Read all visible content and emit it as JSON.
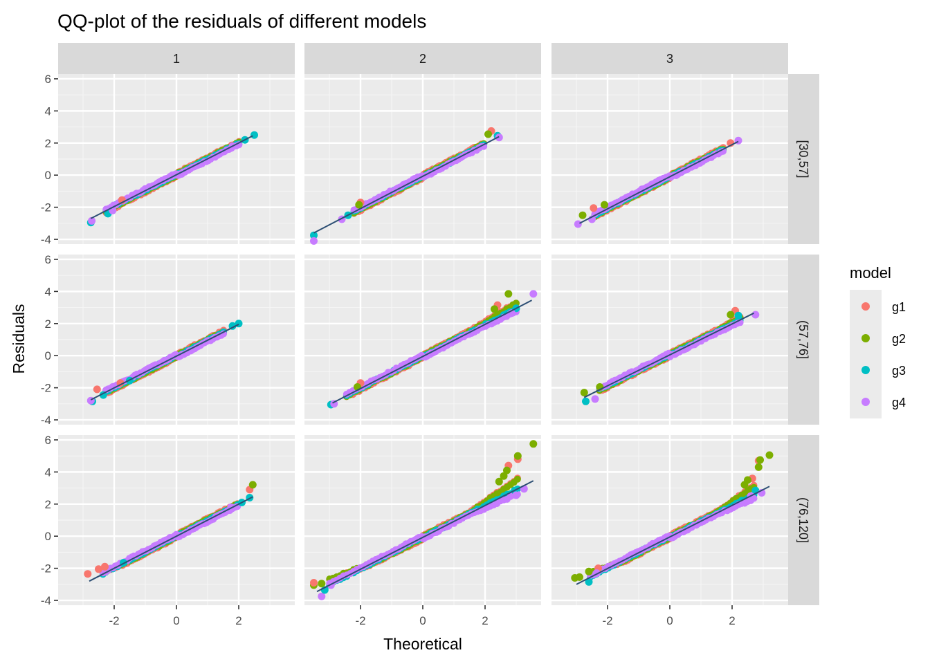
{
  "chart_data": {
    "type": "scatter",
    "subtype": "qq-plot facet grid",
    "title": "QQ-plot of the residuals of different models",
    "xlabel": "Theoretical",
    "ylabel": "Residuals",
    "xlim": [
      -3.8,
      3.8
    ],
    "ylim": [
      -4.3,
      6.3
    ],
    "x_ticks": [
      -2,
      0,
      2
    ],
    "x_tick_labels": [
      "-2",
      "0",
      "2"
    ],
    "y_ticks": [
      -4,
      -2,
      0,
      2,
      4,
      6
    ],
    "y_tick_labels": [
      "-4",
      "-2",
      "0",
      "2",
      "4",
      "6"
    ],
    "grid": true,
    "facet_columns": [
      "1",
      "2",
      "3"
    ],
    "facet_rows": [
      "[30,57]",
      "(57,76]",
      "(76,120]"
    ],
    "legend": {
      "title": "model",
      "position": "right",
      "entries": [
        {
          "name": "g1",
          "color": "#F8766D"
        },
        {
          "name": "g2",
          "color": "#7CAE00"
        },
        {
          "name": "g3",
          "color": "#00BFC4"
        },
        {
          "name": "g4",
          "color": "#C77CFF"
        }
      ]
    },
    "reference_line_color": "#2C4E73",
    "panels": [
      {
        "row": 0,
        "col": 0,
        "line": {
          "x": [
            -2.75,
            2.45
          ],
          "y": [
            -2.7,
            2.45
          ]
        },
        "x_range": [
          -2.75,
          2.5
        ],
        "curve": [
          0.0,
          0.0,
          0.0
        ],
        "outliers": [
          {
            "series": "g3",
            "x": -2.75,
            "y": -2.95
          },
          {
            "series": "g4",
            "x": -2.72,
            "y": -2.85
          },
          {
            "series": "g3",
            "x": -2.2,
            "y": -2.4
          },
          {
            "series": "g4",
            "x": -2.05,
            "y": -2.2
          },
          {
            "series": "g1",
            "x": -1.75,
            "y": -1.55
          },
          {
            "series": "g3",
            "x": 2.5,
            "y": 2.5
          },
          {
            "series": "g3",
            "x": 2.2,
            "y": 2.2
          },
          {
            "series": "g4",
            "x": 1.8,
            "y": 1.8
          }
        ]
      },
      {
        "row": 0,
        "col": 1,
        "line": {
          "x": [
            -3.5,
            2.45
          ],
          "y": [
            -3.6,
            2.4
          ]
        },
        "x_range": [
          -2.7,
          2.45
        ],
        "curve": [
          0.0,
          0.0,
          0.0
        ],
        "outliers": [
          {
            "series": "g3",
            "x": -3.5,
            "y": -3.75
          },
          {
            "series": "g4",
            "x": -3.5,
            "y": -4.1
          },
          {
            "series": "g4",
            "x": -2.6,
            "y": -2.75
          },
          {
            "series": "g3",
            "x": -2.4,
            "y": -2.5
          },
          {
            "series": "g1",
            "x": -2.0,
            "y": -1.7
          },
          {
            "series": "g2",
            "x": -2.05,
            "y": -1.85
          },
          {
            "series": "g1",
            "x": 2.2,
            "y": 2.75
          },
          {
            "series": "g2",
            "x": 2.1,
            "y": 2.55
          },
          {
            "series": "g3",
            "x": 2.4,
            "y": 2.45
          },
          {
            "series": "g4",
            "x": 2.45,
            "y": 2.35
          }
        ]
      },
      {
        "row": 0,
        "col": 2,
        "line": {
          "x": [
            -2.9,
            2.2
          ],
          "y": [
            -3.0,
            2.1
          ]
        },
        "x_range": [
          -2.9,
          2.2
        ],
        "curve": [
          0.0,
          0.0,
          0.0
        ],
        "outliers": [
          {
            "series": "g4",
            "x": -2.95,
            "y": -3.05
          },
          {
            "series": "g2",
            "x": -2.8,
            "y": -2.5
          },
          {
            "series": "g1",
            "x": -2.45,
            "y": -2.05
          },
          {
            "series": "g4",
            "x": -2.5,
            "y": -2.75
          },
          {
            "series": "g2",
            "x": -2.1,
            "y": -1.85
          },
          {
            "series": "g1",
            "x": 1.95,
            "y": 2.0
          },
          {
            "series": "g4",
            "x": 2.2,
            "y": 2.15
          }
        ]
      },
      {
        "row": 1,
        "col": 0,
        "line": {
          "x": [
            -2.75,
            2.0
          ],
          "y": [
            -2.75,
            1.95
          ]
        },
        "x_range": [
          -2.75,
          2.0
        ],
        "curve": [
          0.0,
          0.0,
          0.0
        ],
        "outliers": [
          {
            "series": "g3",
            "x": -2.7,
            "y": -2.85
          },
          {
            "series": "g4",
            "x": -2.75,
            "y": -2.8
          },
          {
            "series": "g1",
            "x": -2.55,
            "y": -2.1
          },
          {
            "series": "g3",
            "x": -2.35,
            "y": -2.45
          },
          {
            "series": "g1",
            "x": -1.8,
            "y": -1.7
          },
          {
            "series": "g3",
            "x": -1.5,
            "y": -1.55
          },
          {
            "series": "g3",
            "x": 2.0,
            "y": 2.0
          },
          {
            "series": "g3",
            "x": 1.8,
            "y": 1.85
          }
        ]
      },
      {
        "row": 1,
        "col": 1,
        "line": {
          "x": [
            -2.9,
            3.5
          ],
          "y": [
            -2.95,
            3.45
          ]
        },
        "x_range": [
          -2.95,
          3.5
        ],
        "curve": [
          0.0,
          0.0,
          0.15
        ],
        "outliers": [
          {
            "series": "g3",
            "x": -2.95,
            "y": -3.05
          },
          {
            "series": "g4",
            "x": -2.85,
            "y": -3.0
          },
          {
            "series": "g1",
            "x": -2.0,
            "y": -1.7
          },
          {
            "series": "g2",
            "x": -2.1,
            "y": -1.95
          },
          {
            "series": "g2",
            "x": 2.75,
            "y": 3.85
          },
          {
            "series": "g4",
            "x": 3.55,
            "y": 3.85
          },
          {
            "series": "g1",
            "x": 2.4,
            "y": 3.15
          },
          {
            "series": "g2",
            "x": 2.3,
            "y": 2.9
          },
          {
            "series": "g3",
            "x": 3.0,
            "y": 2.95
          },
          {
            "series": "g4",
            "x": 2.85,
            "y": 2.65
          }
        ]
      },
      {
        "row": 1,
        "col": 2,
        "line": {
          "x": [
            -2.75,
            2.7
          ],
          "y": [
            -2.6,
            2.65
          ]
        },
        "x_range": [
          -2.75,
          2.75
        ],
        "curve": [
          0.0,
          0.0,
          0.1
        ],
        "outliers": [
          {
            "series": "g2",
            "x": -2.75,
            "y": -2.3
          },
          {
            "series": "g3",
            "x": -2.7,
            "y": -2.85
          },
          {
            "series": "g2",
            "x": -2.25,
            "y": -1.95
          },
          {
            "series": "g4",
            "x": -2.4,
            "y": -2.7
          },
          {
            "series": "g1",
            "x": 2.1,
            "y": 2.8
          },
          {
            "series": "g2",
            "x": 1.95,
            "y": 2.55
          },
          {
            "series": "g3",
            "x": 2.2,
            "y": 2.5
          },
          {
            "series": "g4",
            "x": 2.75,
            "y": 2.55
          }
        ]
      },
      {
        "row": 2,
        "col": 0,
        "line": {
          "x": [
            -2.8,
            2.45
          ],
          "y": [
            -2.8,
            2.45
          ]
        },
        "x_range": [
          -2.85,
          2.45
        ],
        "curve": [
          0.25,
          0.0,
          0.0
        ],
        "outliers": [
          {
            "series": "g1",
            "x": -2.85,
            "y": -2.35
          },
          {
            "series": "g1",
            "x": -2.5,
            "y": -2.05
          },
          {
            "series": "g1",
            "x": -2.3,
            "y": -1.9
          },
          {
            "series": "g3",
            "x": -1.7,
            "y": -1.65
          },
          {
            "series": "g1",
            "x": 2.35,
            "y": 2.9
          },
          {
            "series": "g2",
            "x": 2.45,
            "y": 3.2
          },
          {
            "series": "g3",
            "x": 2.35,
            "y": 2.4
          },
          {
            "series": "g3",
            "x": 2.1,
            "y": 2.1
          },
          {
            "series": "g4",
            "x": 1.75,
            "y": 1.8
          }
        ]
      },
      {
        "row": 2,
        "col": 1,
        "line": {
          "x": [
            -3.4,
            3.55
          ],
          "y": [
            -3.45,
            3.45
          ]
        },
        "x_range": [
          -3.5,
          3.55
        ],
        "curve": [
          0.35,
          0.0,
          0.3
        ],
        "outliers": [
          {
            "series": "g2",
            "x": -3.5,
            "y": -3.05
          },
          {
            "series": "g1",
            "x": -3.5,
            "y": -2.9
          },
          {
            "series": "g4",
            "x": -3.25,
            "y": -3.75
          },
          {
            "series": "g3",
            "x": -3.15,
            "y": -3.35
          },
          {
            "series": "g2",
            "x": -3.25,
            "y": -2.95
          },
          {
            "series": "g4",
            "x": -2.95,
            "y": -3.05
          },
          {
            "series": "g2",
            "x": 3.55,
            "y": 5.75
          },
          {
            "series": "g1",
            "x": 3.05,
            "y": 4.8
          },
          {
            "series": "g2",
            "x": 3.05,
            "y": 5.0
          },
          {
            "series": "g1",
            "x": 2.75,
            "y": 4.4
          },
          {
            "series": "g2",
            "x": 2.7,
            "y": 4.1
          },
          {
            "series": "g2",
            "x": 2.6,
            "y": 3.75
          },
          {
            "series": "g2",
            "x": 2.45,
            "y": 3.4
          },
          {
            "series": "g3",
            "x": 2.95,
            "y": 2.85
          },
          {
            "series": "g4",
            "x": 3.25,
            "y": 2.95
          },
          {
            "series": "g4",
            "x": 3.0,
            "y": 2.55
          }
        ]
      },
      {
        "row": 2,
        "col": 2,
        "line": {
          "x": [
            -3.0,
            3.2
          ],
          "y": [
            -3.0,
            3.1
          ]
        },
        "x_range": [
          -3.05,
          3.2
        ],
        "curve": [
          0.35,
          0.0,
          0.3
        ],
        "outliers": [
          {
            "series": "g2",
            "x": -3.05,
            "y": -2.6
          },
          {
            "series": "g2",
            "x": -2.9,
            "y": -2.55
          },
          {
            "series": "g3",
            "x": -2.6,
            "y": -2.85
          },
          {
            "series": "g2",
            "x": -2.6,
            "y": -2.2
          },
          {
            "series": "g1",
            "x": -2.3,
            "y": -2.0
          },
          {
            "series": "g4",
            "x": -2.35,
            "y": -2.3
          },
          {
            "series": "g2",
            "x": 3.2,
            "y": 5.05
          },
          {
            "series": "g1",
            "x": 2.85,
            "y": 4.7
          },
          {
            "series": "g2",
            "x": 2.9,
            "y": 4.75
          },
          {
            "series": "g2",
            "x": 2.85,
            "y": 4.3
          },
          {
            "series": "g1",
            "x": 2.65,
            "y": 3.6
          },
          {
            "series": "g2",
            "x": 2.5,
            "y": 3.5
          },
          {
            "series": "g2",
            "x": 2.4,
            "y": 3.2
          },
          {
            "series": "g3",
            "x": 2.75,
            "y": 2.85
          },
          {
            "series": "g4",
            "x": 2.6,
            "y": 2.5
          },
          {
            "series": "g4",
            "x": 2.95,
            "y": 2.7
          }
        ]
      }
    ]
  }
}
